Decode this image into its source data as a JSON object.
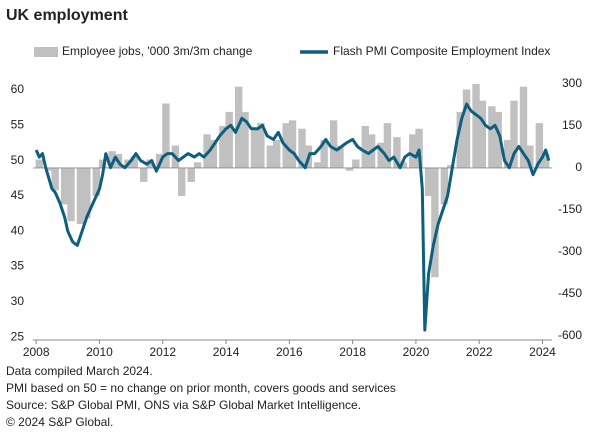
{
  "chart_data": {
    "type": "bar-line",
    "title": "UK employment",
    "notes": [
      "Data compiled March 2024.",
      "PMI based on 50 = no change on prior month, covers goods and services",
      "Source: S&P Global PMI, ONS via S&P Global Market Intelligence.",
      "© 2024 S&P Global."
    ],
    "xlim": [
      2007.9,
      2024.3
    ],
    "xticks": [
      2008,
      2010,
      2012,
      2014,
      2016,
      2018,
      2020,
      2022,
      2024
    ],
    "ylim": [
      24.6,
      61.7
    ],
    "yticks": [
      25,
      30,
      35,
      40,
      45,
      50,
      55,
      60
    ],
    "y2lim": [
      -614,
      321
    ],
    "y2ticks": [
      -600,
      -450,
      -300,
      -150,
      0,
      150,
      300
    ],
    "series": [
      {
        "name": "Employee jobs, '000 3m/3m change",
        "type": "bar",
        "axis": "y2",
        "color": "#c0c0c0",
        "x": [
          2008.1,
          2008.4,
          2008.6,
          2008.9,
          2009.1,
          2009.4,
          2009.6,
          2009.9,
          2010.1,
          2010.4,
          2010.6,
          2010.9,
          2011.1,
          2011.4,
          2011.6,
          2011.9,
          2012.1,
          2012.4,
          2012.6,
          2012.9,
          2013.1,
          2013.4,
          2013.6,
          2013.9,
          2014.1,
          2014.4,
          2014.6,
          2014.9,
          2015.1,
          2015.4,
          2015.6,
          2015.9,
          2016.1,
          2016.4,
          2016.6,
          2016.9,
          2017.1,
          2017.4,
          2017.6,
          2017.9,
          2018.1,
          2018.4,
          2018.6,
          2018.9,
          2019.1,
          2019.4,
          2019.6,
          2019.9,
          2020.1,
          2020.4,
          2020.6,
          2020.9,
          2021.1,
          2021.4,
          2021.6,
          2021.9,
          2022.1,
          2022.4,
          2022.6,
          2022.9,
          2023.1,
          2023.4,
          2023.6,
          2023.9,
          2024.1
        ],
        "values": [
          30,
          -10,
          -80,
          -130,
          -190,
          -200,
          -180,
          -100,
          30,
          60,
          50,
          30,
          40,
          -50,
          30,
          50,
          230,
          80,
          -100,
          -50,
          20,
          120,
          100,
          150,
          200,
          290,
          200,
          140,
          160,
          80,
          100,
          160,
          170,
          140,
          80,
          20,
          100,
          170,
          80,
          -10,
          30,
          150,
          120,
          90,
          160,
          110,
          20,
          120,
          140,
          -100,
          -390,
          -130,
          10,
          200,
          280,
          300,
          240,
          220,
          200,
          100,
          240,
          290,
          80,
          160,
          50
        ]
      },
      {
        "name": "Flash PMI Composite Employment Index",
        "type": "line",
        "axis": "y",
        "color": "#0e5f7e",
        "x": [
          2008.0,
          2008.1,
          2008.2,
          2008.3,
          2008.5,
          2008.6,
          2008.75,
          2008.9,
          2009.0,
          2009.15,
          2009.3,
          2009.45,
          2009.6,
          2009.75,
          2009.9,
          2010.0,
          2010.1,
          2010.2,
          2010.35,
          2010.5,
          2010.65,
          2010.8,
          2011.0,
          2011.15,
          2011.3,
          2011.5,
          2011.65,
          2011.8,
          2012.0,
          2012.15,
          2012.3,
          2012.5,
          2012.65,
          2012.8,
          2013.0,
          2013.15,
          2013.3,
          2013.5,
          2013.65,
          2013.8,
          2014.0,
          2014.15,
          2014.3,
          2014.5,
          2014.65,
          2014.8,
          2015.0,
          2015.15,
          2015.3,
          2015.5,
          2015.65,
          2015.8,
          2016.0,
          2016.15,
          2016.3,
          2016.5,
          2016.65,
          2016.8,
          2017.0,
          2017.15,
          2017.3,
          2017.5,
          2017.65,
          2017.8,
          2018.0,
          2018.15,
          2018.3,
          2018.5,
          2018.65,
          2018.8,
          2019.0,
          2019.15,
          2019.3,
          2019.5,
          2019.65,
          2019.8,
          2020.0,
          2020.1,
          2020.2,
          2020.28,
          2020.4,
          2020.55,
          2020.7,
          2020.85,
          2021.0,
          2021.15,
          2021.3,
          2021.45,
          2021.6,
          2021.75,
          2021.9,
          2022.05,
          2022.2,
          2022.35,
          2022.5,
          2022.65,
          2022.8,
          2022.95,
          2023.1,
          2023.25,
          2023.4,
          2023.55,
          2023.7,
          2023.85,
          2024.0,
          2024.1,
          2024.2
        ],
        "values": [
          51.5,
          50.5,
          51,
          49,
          46,
          45.5,
          44,
          42,
          40,
          38.5,
          38,
          40,
          42,
          43.5,
          45,
          46,
          48,
          51,
          49,
          50.5,
          49.5,
          49,
          50,
          51,
          50,
          49.5,
          50,
          48.5,
          50.5,
          51,
          51,
          50,
          50.5,
          51,
          50.5,
          51,
          50.5,
          51.5,
          52.5,
          53.5,
          54.5,
          55,
          54,
          56,
          55.5,
          54.5,
          54.5,
          55,
          53.5,
          53,
          54,
          52.5,
          51.5,
          51,
          50,
          49,
          51,
          51,
          52,
          53,
          52,
          51.5,
          52,
          52.5,
          53,
          52,
          51.5,
          51,
          51.5,
          52,
          51,
          50,
          50.5,
          49,
          50.5,
          51,
          50.5,
          51.5,
          46,
          26,
          34,
          38,
          41,
          43,
          45,
          49,
          53,
          56,
          58,
          57,
          56.5,
          56,
          55,
          54.5,
          55,
          53.5,
          50,
          49,
          51,
          52,
          51,
          50,
          48,
          49.5,
          50.5,
          51.5,
          50
        ]
      }
    ]
  }
}
